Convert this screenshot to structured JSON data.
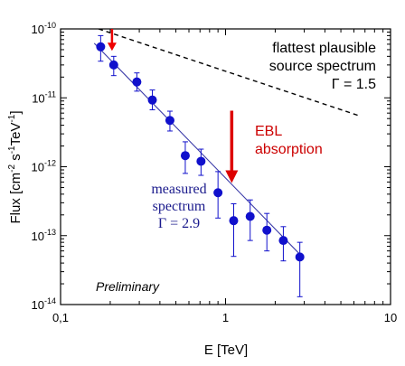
{
  "chart_data": {
    "type": "scatter",
    "x_scale": "log",
    "y_scale": "log",
    "xlabel": "E [TeV]",
    "ylabel_parts": [
      "Flux [cm",
      "-2",
      " s",
      "-1",
      "TeV",
      "-1",
      "]"
    ],
    "xlim": [
      0.1,
      10
    ],
    "ylim": [
      1e-14,
      1e-10
    ],
    "x_ticks": [
      {
        "value": 0.1,
        "label": "0,1"
      },
      {
        "value": 1,
        "label": "1"
      },
      {
        "value": 10,
        "label": "10"
      }
    ],
    "y_ticks": [
      {
        "value": 1e-10,
        "mant": "10",
        "exp": "-10"
      },
      {
        "value": 1e-11,
        "mant": "10",
        "exp": "-11"
      },
      {
        "value": 1e-12,
        "mant": "10",
        "exp": "-12"
      },
      {
        "value": 1e-13,
        "mant": "10",
        "exp": "-13"
      },
      {
        "value": 1e-14,
        "mant": "10",
        "exp": "-14"
      }
    ],
    "grid": false,
    "series": [
      {
        "points": [
          {
            "x": 0.175,
            "y": 5.5e-11,
            "y_low": 3.4e-11,
            "y_high": 8e-11
          },
          {
            "x": 0.21,
            "y": 3e-11,
            "y_low": 2.1e-11,
            "y_high": 4e-11
          },
          {
            "x": 0.29,
            "y": 1.7e-11,
            "y_low": 1.25e-11,
            "y_high": 2.3e-11
          },
          {
            "x": 0.36,
            "y": 9.3e-12,
            "y_low": 6.7e-12,
            "y_high": 1.3e-11
          },
          {
            "x": 0.46,
            "y": 4.7e-12,
            "y_low": 3.3e-12,
            "y_high": 6.4e-12
          },
          {
            "x": 0.57,
            "y": 1.45e-12,
            "y_low": 8e-13,
            "y_high": 2.3e-12
          },
          {
            "x": 0.71,
            "y": 1.2e-12,
            "y_low": 7.5e-13,
            "y_high": 1.8e-12
          },
          {
            "x": 0.9,
            "y": 4.2e-13,
            "y_low": 1.8e-13,
            "y_high": 8.5e-13
          },
          {
            "x": 1.12,
            "y": 1.65e-13,
            "y_low": 5e-14,
            "y_high": 2.9e-13
          },
          {
            "x": 1.41,
            "y": 1.9e-13,
            "y_low": 8.5e-14,
            "y_high": 3.3e-13
          },
          {
            "x": 1.78,
            "y": 1.2e-13,
            "y_low": 6e-14,
            "y_high": 2.1e-13
          },
          {
            "x": 2.24,
            "y": 8.5e-14,
            "y_low": 4.3e-14,
            "y_high": 1.35e-13
          },
          {
            "x": 2.82,
            "y": 4.9e-14,
            "y_low": 1.3e-14,
            "y_high": 8e-14
          }
        ],
        "color": "#1010cc"
      }
    ],
    "fit_line": {
      "x": [
        0.16,
        2.95
      ],
      "y": [
        6.2e-11,
        4.8e-14
      ],
      "color": "#3a3aa8"
    },
    "plausible_line": {
      "x": [
        0.17,
        6.6
      ],
      "y": [
        1e-10,
        5.4e-12
      ],
      "color": "#000000",
      "dashed": true
    },
    "annotations": {
      "flattest": [
        "flattest plausible",
        "source spectrum",
        "Γ = 1.5"
      ],
      "ebl": [
        "EBL",
        "absorption"
      ],
      "measured": [
        "measured",
        "spectrum",
        "Γ = 2.9"
      ],
      "preliminary": "Preliminary"
    },
    "arrows": [
      {
        "x": 0.205,
        "y_from": 1e-10,
        "y_to": 4.8e-11,
        "color": "#ee0000"
      },
      {
        "x": 1.09,
        "y_from": 6.5e-12,
        "y_to": 5.8e-13,
        "color": "#dd0000"
      }
    ],
    "colors": {
      "annotation_red": "#cc0000",
      "annotation_blue": "#1a1a8c"
    }
  }
}
